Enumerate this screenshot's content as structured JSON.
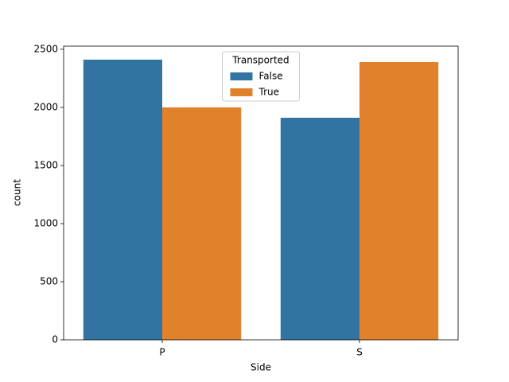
{
  "chart_data": {
    "type": "bar",
    "x_label": "Side",
    "y_label": "count",
    "categories": [
      "P",
      "S"
    ],
    "legend_title": "Transported",
    "legend_position": "upper center",
    "series": [
      {
        "name": "False",
        "color": "#3274a1",
        "values": [
          2411,
          1911
        ]
      },
      {
        "name": "True",
        "color": "#e1812c",
        "values": [
          2000,
          2390
        ]
      }
    ],
    "ylim": [
      0,
      2527
    ],
    "yticks": [
      0,
      500,
      1000,
      1500,
      2000,
      2500
    ]
  }
}
